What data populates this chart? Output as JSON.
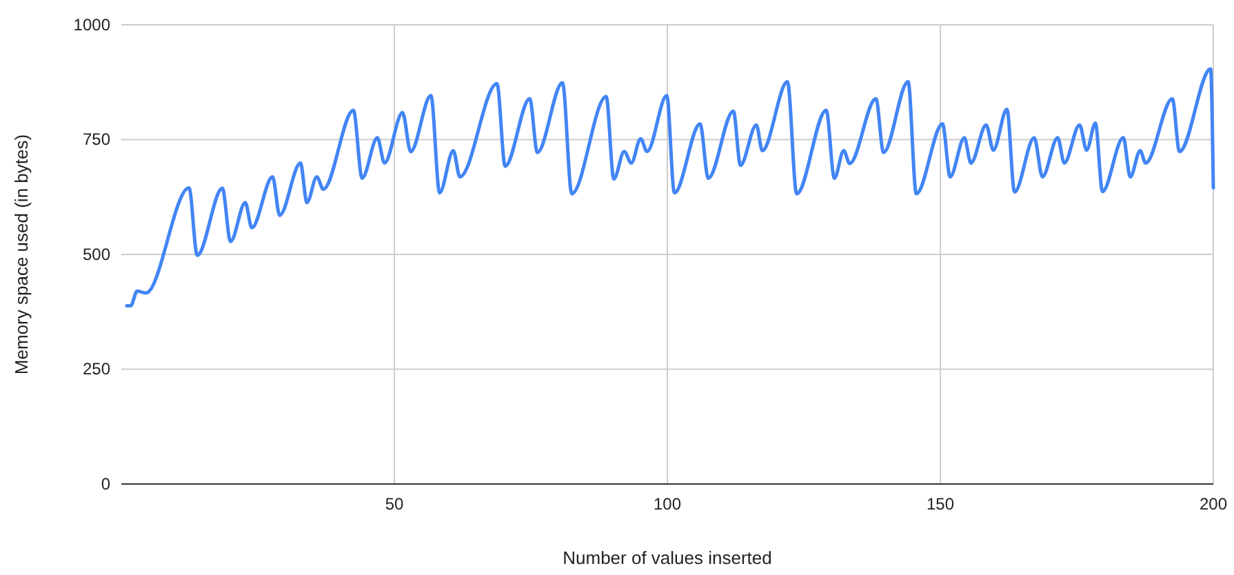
{
  "chart_data": {
    "type": "line",
    "xlabel": "Number of values inserted",
    "ylabel": "Memory space used (in bytes)",
    "xlim": [
      0,
      200
    ],
    "xticks": [
      50,
      100,
      150,
      200
    ],
    "ylim": [
      0,
      1000
    ],
    "yticks": [
      0,
      250,
      500,
      750,
      1000
    ],
    "grid": true,
    "line_style": "solid",
    "series": [
      {
        "color": "#4285f4",
        "x": [
          1,
          1.7,
          2.9,
          4.5,
          12.4,
          13.9,
          18.5,
          20,
          22.7,
          23.9,
          27.7,
          29,
          32.8,
          34,
          35.8,
          37,
          42.5,
          44.1,
          46.9,
          48.2,
          51.5,
          53,
          56.7,
          58.3,
          60.8,
          62,
          68.8,
          70.3,
          74.8,
          76.2,
          80.8,
          82.5,
          88.8,
          90.2,
          92.1,
          93.4,
          95.1,
          96.3,
          99.9,
          101.3,
          106,
          107.5,
          112.1,
          113.4,
          116.3,
          117.4,
          122,
          123.7,
          129.1,
          130.6,
          132.3,
          133.4,
          138.2,
          139.6,
          144.1,
          145.6,
          150.4,
          151.8,
          154.4,
          155.6,
          158.4,
          159.7,
          162.2,
          163.6,
          167.2,
          168.7,
          171.5,
          172.7,
          175.5,
          176.8,
          178.4,
          179.7,
          183.5,
          184.8,
          186.6,
          187.6,
          192.5,
          193.8,
          199.5,
          200
        ],
        "values": [
          388,
          388,
          420,
          416,
          645,
          498,
          644,
          528,
          613,
          558,
          669,
          585,
          699,
          613,
          669,
          642,
          814,
          666,
          754,
          699,
          809,
          724,
          846,
          634,
          726,
          669,
          872,
          692,
          839,
          722,
          874,
          632,
          844,
          664,
          724,
          699,
          752,
          724,
          846,
          634,
          784,
          666,
          812,
          694,
          782,
          726,
          876,
          632,
          814,
          666,
          726,
          698,
          839,
          722,
          876,
          632,
          784,
          669,
          754,
          699,
          782,
          727,
          816,
          636,
          754,
          669,
          754,
          699,
          782,
          727,
          786,
          637,
          754,
          669,
          726,
          699,
          839,
          724,
          904,
          645
        ]
      }
    ]
  }
}
